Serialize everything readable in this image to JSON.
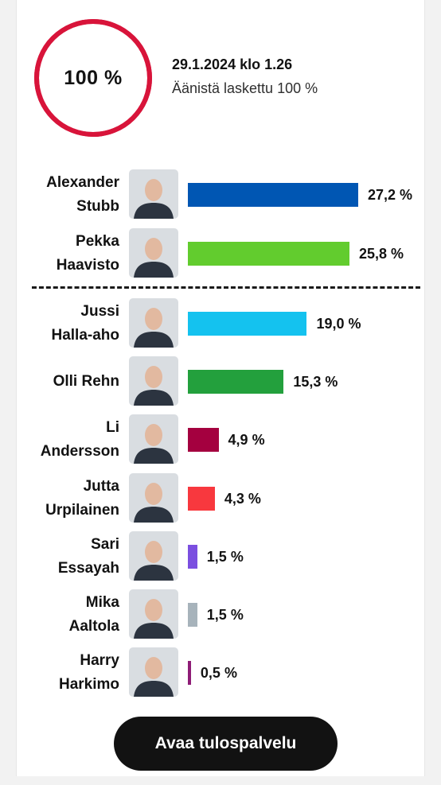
{
  "summary": {
    "counted_ring_label": "100 %",
    "counted_fraction": 1.0,
    "timestamp": "29.1.2024 klo 1.26",
    "status": "Äänistä laskettu 100 %"
  },
  "button": {
    "label": "Avaa tulospalvelu"
  },
  "colors": {
    "ring": "#d8143a",
    "text": "#121212"
  },
  "chart_data": {
    "type": "bar",
    "orientation": "horizontal",
    "unit": "%",
    "title": "",
    "xlabel": "",
    "ylabel": "",
    "xlim": [
      0,
      27.2
    ],
    "majority_divider_after_index": 1,
    "categories": [
      [
        "Alexander",
        "Stubb"
      ],
      [
        "Pekka",
        "Haavisto"
      ],
      [
        "Jussi",
        "Halla-aho"
      ],
      [
        "Olli Rehn"
      ],
      [
        "Li",
        "Andersson"
      ],
      [
        "Jutta",
        "Urpilainen"
      ],
      [
        "Sari",
        "Essayah"
      ],
      [
        "Mika",
        "Aaltola"
      ],
      [
        "Harry",
        "Harkimo"
      ]
    ],
    "values": [
      27.2,
      25.8,
      19.0,
      15.3,
      4.9,
      4.3,
      1.5,
      1.5,
      0.5
    ],
    "value_labels": [
      "27,2 %",
      "25,8 %",
      "19,0 %",
      "15,3 %",
      "4,9 %",
      "4,3 %",
      "1,5 %",
      "1,5 %",
      "0,5 %"
    ],
    "bar_colors": [
      "#0056b3",
      "#62cc2e",
      "#14c2ef",
      "#23a03d",
      "#a4003f",
      "#f8383e",
      "#7b4fe0",
      "#a7b3bb",
      "#8e1c76"
    ]
  }
}
